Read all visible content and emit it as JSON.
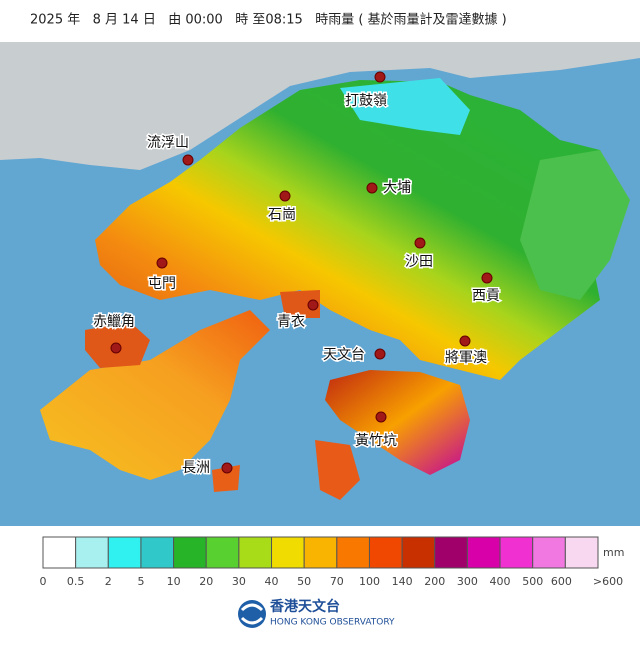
{
  "title": "2025 年   8 月 14 日   由 00:00   時 至08:15   時雨量 ( 基於雨量計及雷達數據 )",
  "places": [
    {
      "name": "打鼓嶺"
    },
    {
      "name": "流浮山"
    },
    {
      "name": "大埔"
    },
    {
      "name": "石崗"
    },
    {
      "name": "沙田"
    },
    {
      "name": "屯門"
    },
    {
      "name": "西貢"
    },
    {
      "name": "赤鱲角"
    },
    {
      "name": "青衣"
    },
    {
      "name": "天文台"
    },
    {
      "name": "將軍澳"
    },
    {
      "name": "黃竹坑"
    },
    {
      "name": "長洲"
    }
  ],
  "legend": {
    "unit": "mm",
    "labels": [
      0,
      0.5,
      2,
      5,
      10,
      20,
      30,
      40,
      50,
      70,
      100,
      140,
      200,
      300,
      400,
      500,
      600,
      ">600"
    ],
    "colors": [
      "#ffffff",
      "#a8f0f0",
      "#30f0f0",
      "#30c8c8",
      "#28b428",
      "#58d030",
      "#a8dc18",
      "#f0dc00",
      "#f8b400",
      "#f87800",
      "#f04800",
      "#c83000",
      "#a0006a",
      "#d800a8",
      "#f030d0",
      "#f078e0",
      "#f8d8f0"
    ]
  },
  "logo": {
    "name": "香港天文台",
    "name_en": "HONG KONG OBSERVATORY"
  }
}
